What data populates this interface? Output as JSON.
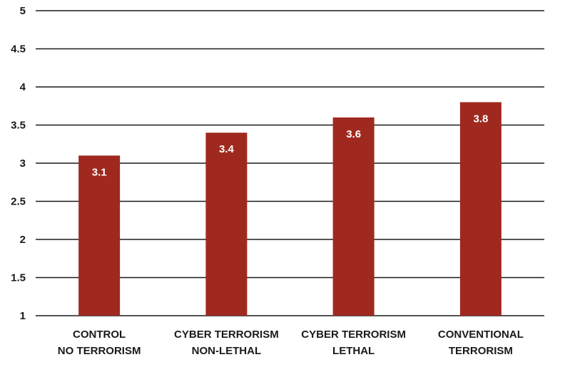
{
  "chart_data": {
    "type": "bar",
    "title": "",
    "xlabel": "",
    "ylabel": "",
    "ylim": [
      1,
      5
    ],
    "yticks": [
      1,
      1.5,
      2,
      2.5,
      3,
      3.5,
      4,
      4.5,
      5
    ],
    "grid": true,
    "legend": "none",
    "bar_color": "#a0291f",
    "categories": [
      [
        "CONTROL",
        "NO TERRORISM"
      ],
      [
        "CYBER TERRORISM",
        "NON-LETHAL"
      ],
      [
        "CYBER TERRORISM",
        "LETHAL"
      ],
      [
        "CONVENTIONAL",
        "TERRORISM"
      ]
    ],
    "values": [
      3.1,
      3.4,
      3.6,
      3.8
    ],
    "data_labels": [
      "3.1",
      "3.4",
      "3.6",
      "3.8"
    ]
  }
}
